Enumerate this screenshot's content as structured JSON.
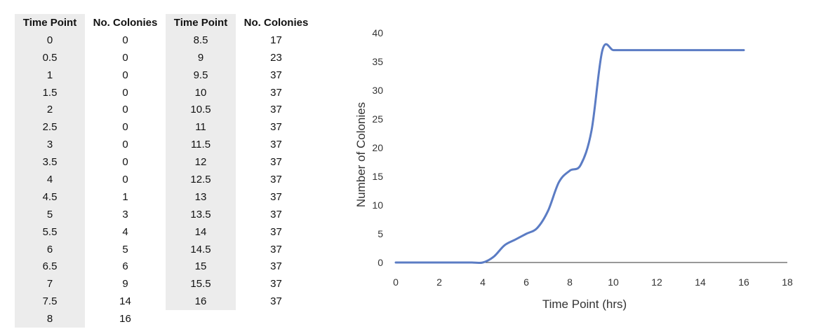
{
  "table": {
    "headers": [
      "Time Point",
      "No. Colonies",
      "Time Point",
      "No. Colonies"
    ],
    "left_rows": [
      [
        "0",
        "0"
      ],
      [
        "0.5",
        "0"
      ],
      [
        "1",
        "0"
      ],
      [
        "1.5",
        "0"
      ],
      [
        "2",
        "0"
      ],
      [
        "2.5",
        "0"
      ],
      [
        "3",
        "0"
      ],
      [
        "3.5",
        "0"
      ],
      [
        "4",
        "0"
      ],
      [
        "4.5",
        "1"
      ],
      [
        "5",
        "3"
      ],
      [
        "5.5",
        "4"
      ],
      [
        "6",
        "5"
      ],
      [
        "6.5",
        "6"
      ],
      [
        "7",
        "9"
      ],
      [
        "7.5",
        "14"
      ],
      [
        "8",
        "16"
      ]
    ],
    "right_rows": [
      [
        "8.5",
        "17"
      ],
      [
        "9",
        "23"
      ],
      [
        "9.5",
        "37"
      ],
      [
        "10",
        "37"
      ],
      [
        "10.5",
        "37"
      ],
      [
        "11",
        "37"
      ],
      [
        "11.5",
        "37"
      ],
      [
        "12",
        "37"
      ],
      [
        "12.5",
        "37"
      ],
      [
        "13",
        "37"
      ],
      [
        "13.5",
        "37"
      ],
      [
        "14",
        "37"
      ],
      [
        "14.5",
        "37"
      ],
      [
        "15",
        "37"
      ],
      [
        "15.5",
        "37"
      ],
      [
        "16",
        "37"
      ]
    ]
  },
  "chart_data": {
    "type": "line",
    "title": "",
    "xlabel": "Time Point (hrs)",
    "ylabel": "Number of Colonies",
    "xlim": [
      0,
      18
    ],
    "ylim": [
      0,
      40
    ],
    "xticks": [
      0,
      2,
      4,
      6,
      8,
      10,
      12,
      14,
      16,
      18
    ],
    "yticks": [
      0,
      5,
      10,
      15,
      20,
      25,
      30,
      35,
      40
    ],
    "grid": false,
    "series": [
      {
        "color": "#5b7cc4",
        "x": [
          0,
          0.5,
          1,
          1.5,
          2,
          2.5,
          3,
          3.5,
          4,
          4.5,
          5,
          5.5,
          6,
          6.5,
          7,
          7.5,
          8,
          8.5,
          9,
          9.5,
          10,
          10.5,
          11,
          11.5,
          12,
          12.5,
          13,
          13.5,
          14,
          14.5,
          15,
          15.5,
          16
        ],
        "y": [
          0,
          0,
          0,
          0,
          0,
          0,
          0,
          0,
          0,
          1,
          3,
          4,
          5,
          6,
          9,
          14,
          16,
          17,
          23,
          37,
          37,
          37,
          37,
          37,
          37,
          37,
          37,
          37,
          37,
          37,
          37,
          37,
          37
        ]
      }
    ]
  },
  "colors": {
    "line": "#5b7cc4",
    "axis": "#333333",
    "table_shade": "#ececec"
  }
}
